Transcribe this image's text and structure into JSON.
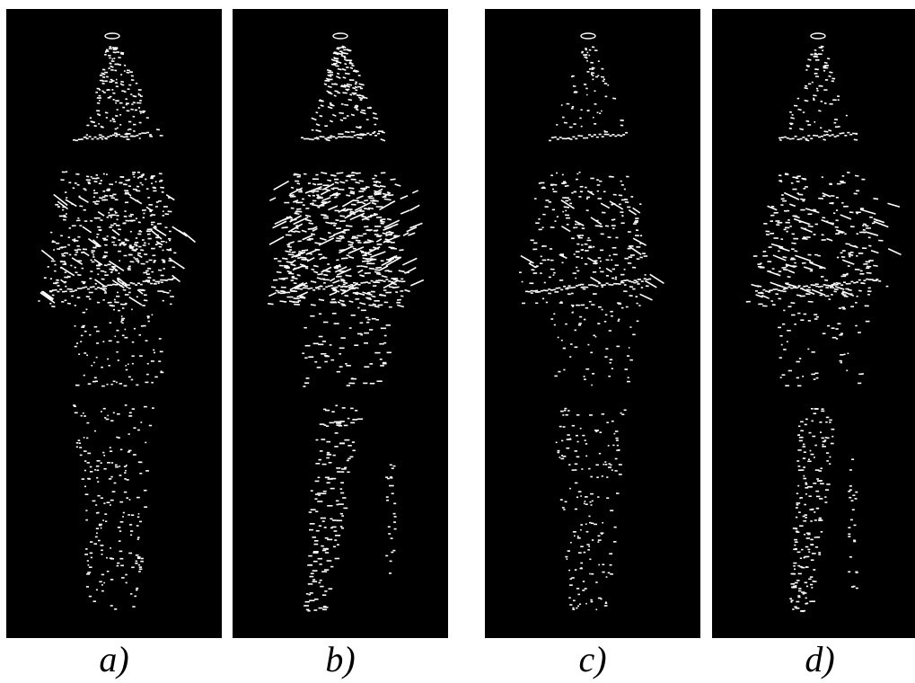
{
  "colors": {
    "background": "#ffffff",
    "panel_background": "#000000",
    "point_color": "#ffffff",
    "caption_color": "#000000"
  },
  "panels": [
    {
      "id": "a",
      "caption": "a)"
    },
    {
      "id": "b",
      "caption": "b)"
    },
    {
      "id": "c",
      "caption": "c)"
    },
    {
      "id": "d",
      "caption": "d)"
    }
  ]
}
